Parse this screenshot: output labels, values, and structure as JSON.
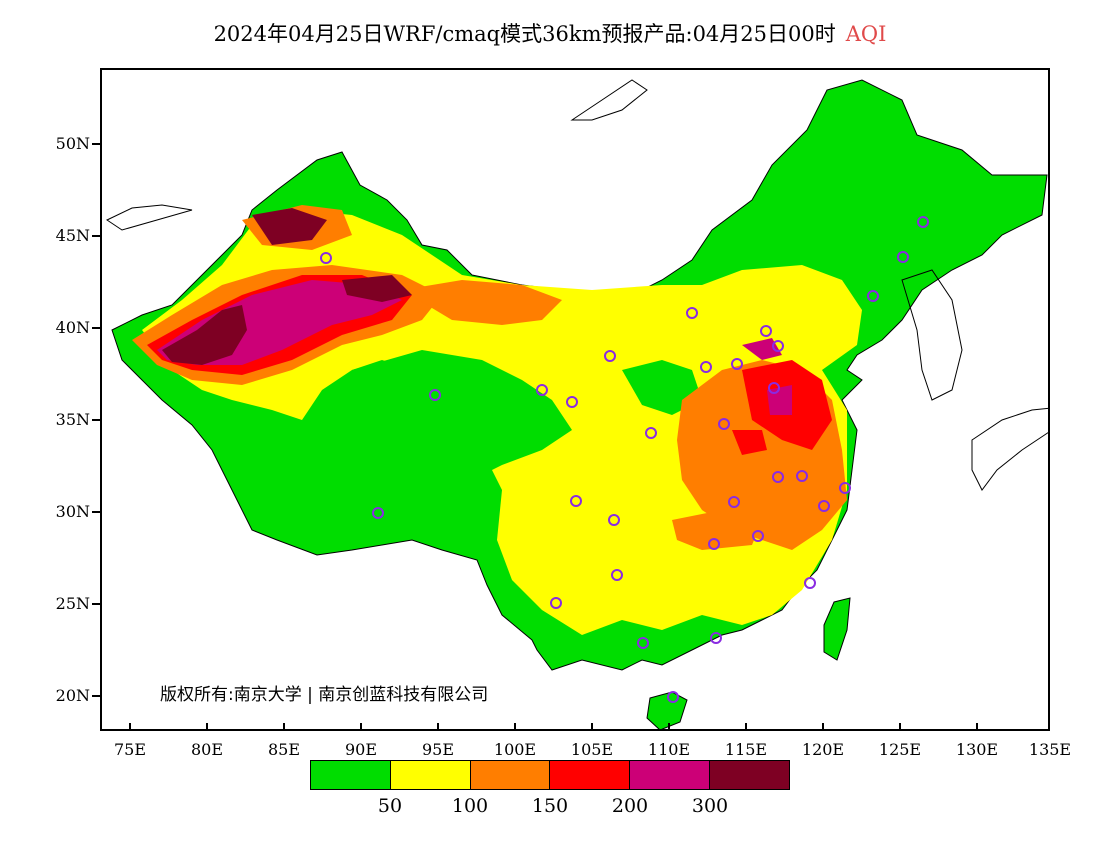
{
  "title": "2024年04月25日WRF/cmaq模式36km预报产品:04月25日00时",
  "title_var": "AQI",
  "y_axis": [
    "50N",
    "45N",
    "40N",
    "35N",
    "30N",
    "25N",
    "20N"
  ],
  "x_axis": [
    "75E",
    "80E",
    "85E",
    "90E",
    "95E",
    "100E",
    "105E",
    "110E",
    "115E",
    "120E",
    "125E",
    "130E",
    "135E"
  ],
  "copyright": "版权所有:南京大学 | 南京创蓝科技有限公司",
  "legend": {
    "colors": [
      "#00dd00",
      "#ffff00",
      "#ff7e00",
      "#ff0000",
      "#cc0077",
      "#7e0023"
    ],
    "labels": [
      "50",
      "100",
      "150",
      "200",
      "300"
    ]
  },
  "colors": {
    "sea": "#ffffff",
    "aqi_red_label": "#e04a4a",
    "station_marker": "#8a2be2"
  }
}
